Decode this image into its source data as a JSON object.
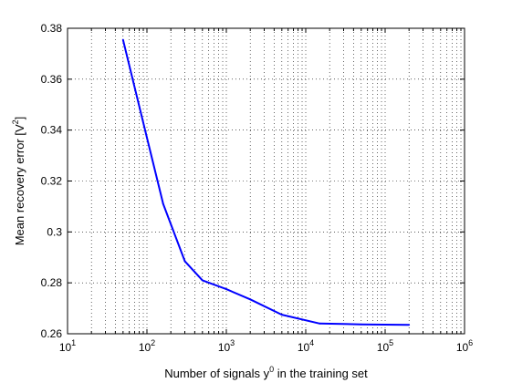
{
  "chart_data": {
    "type": "line",
    "title": "",
    "xscale": "log",
    "xlim": [
      10,
      1000000
    ],
    "ylim": [
      0.26,
      0.38
    ],
    "grid": true,
    "legend": "none",
    "xlabel": {
      "before": "Number of signals y",
      "sup": "0",
      "after": " in the training set"
    },
    "ylabel": {
      "before": "Mean recovery error [V",
      "sup": "2",
      "after": "]"
    },
    "yticks": [
      {
        "value": 0.26,
        "label": "0.26"
      },
      {
        "value": 0.28,
        "label": "0.28"
      },
      {
        "value": 0.3,
        "label": "0.3"
      },
      {
        "value": 0.32,
        "label": "0.32"
      },
      {
        "value": 0.34,
        "label": "0.34"
      },
      {
        "value": 0.36,
        "label": "0.36"
      },
      {
        "value": 0.38,
        "label": "0.38"
      }
    ],
    "xticks": [
      {
        "value": 10,
        "base": "10",
        "exp": "1"
      },
      {
        "value": 100,
        "base": "10",
        "exp": "2"
      },
      {
        "value": 1000,
        "base": "10",
        "exp": "3"
      },
      {
        "value": 10000,
        "base": "10",
        "exp": "4"
      },
      {
        "value": 100000,
        "base": "10",
        "exp": "5"
      },
      {
        "value": 1000000,
        "base": "10",
        "exp": "6"
      }
    ],
    "series": [
      {
        "color": "#0000ff",
        "x": [
          50,
          100,
          160,
          300,
          500,
          1000,
          2000,
          5000,
          15000,
          50000,
          200000
        ],
        "y": [
          0.3755,
          0.337,
          0.311,
          0.2885,
          0.281,
          0.2775,
          0.2735,
          0.2675,
          0.264,
          0.2637,
          0.2635
        ]
      }
    ]
  }
}
